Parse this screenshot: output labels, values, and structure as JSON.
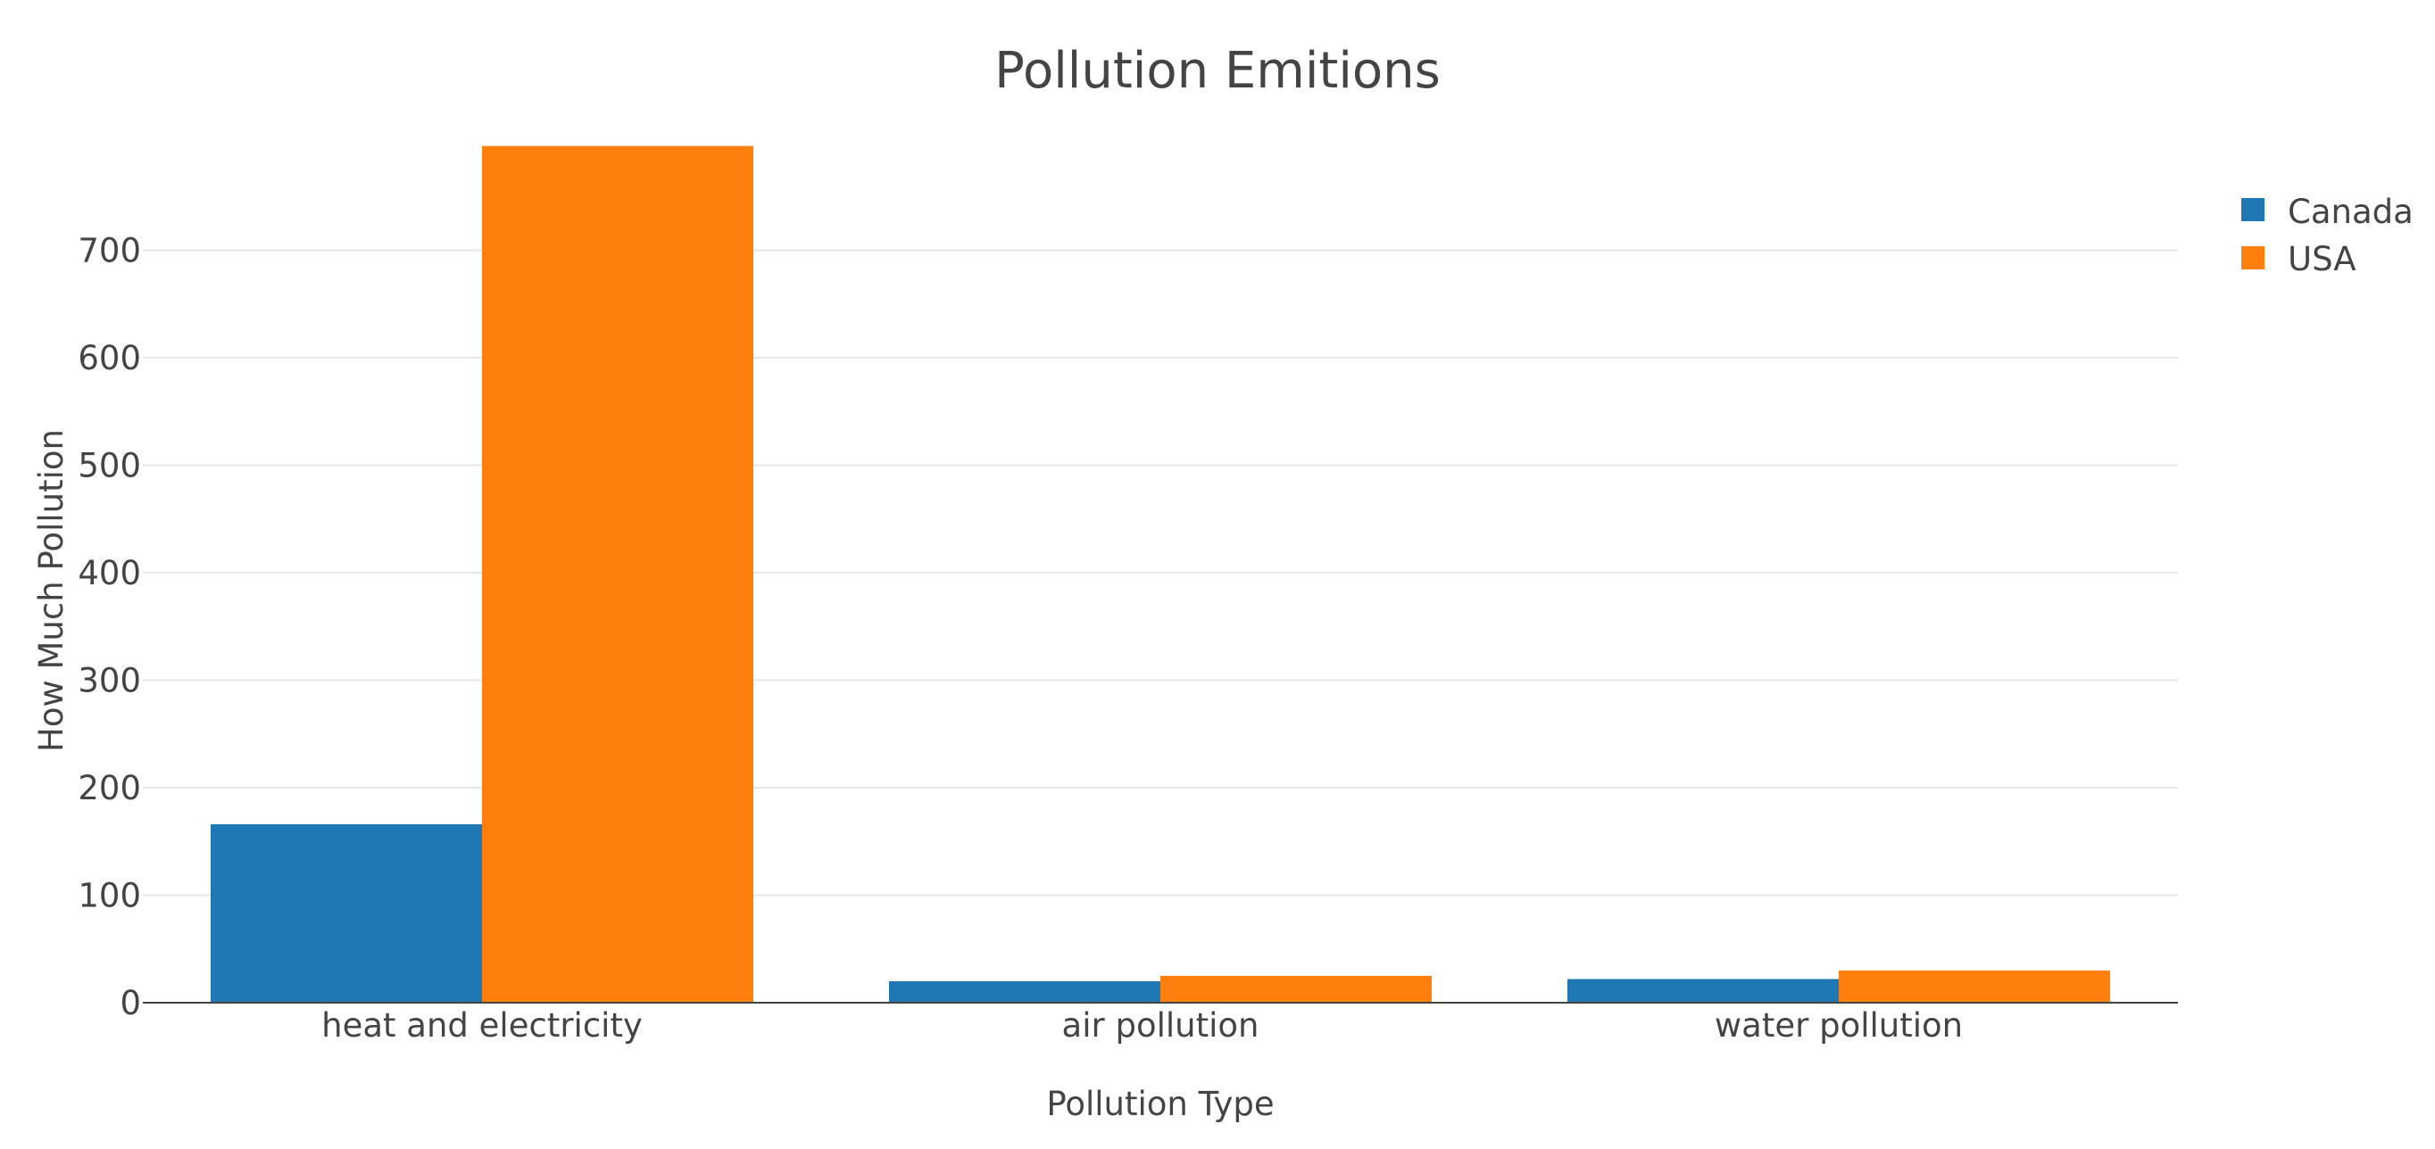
{
  "chart_data": {
    "type": "bar",
    "title": "Pollution Emitions",
    "xlabel": "Pollution Type",
    "ylabel": "How Much Pollution",
    "categories": [
      "heat and electricity",
      "air pollution",
      "water pollution"
    ],
    "series": [
      {
        "name": "Canada",
        "values": [
          166,
          20,
          22
        ],
        "color": "#1f77b4"
      },
      {
        "name": "USA",
        "values": [
          797,
          25,
          30
        ],
        "color": "#ff7f0e"
      }
    ],
    "yticks": [
      0,
      100,
      200,
      300,
      400,
      500,
      600,
      700
    ],
    "ylim": [
      0,
      800
    ],
    "grid": true,
    "legend_position": "top-right"
  }
}
